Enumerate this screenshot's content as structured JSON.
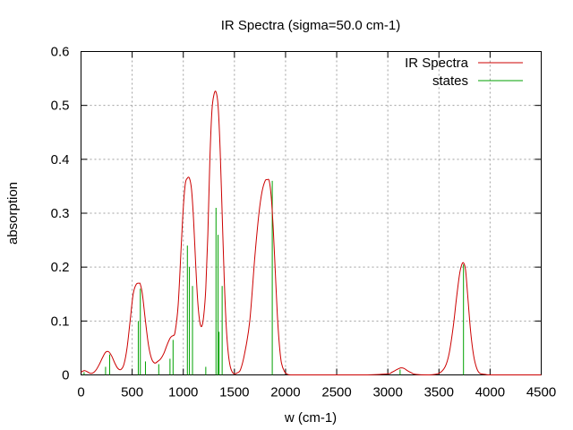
{
  "chart_data": {
    "type": "line",
    "title": "IR Spectra (sigma=50.0 cm-1)",
    "xlabel": "w (cm-1)",
    "ylabel": "absorption",
    "xlim": [
      0,
      4500
    ],
    "ylim": [
      0,
      0.6
    ],
    "xticks": [
      "0",
      "500",
      "1000",
      "1500",
      "2000",
      "2500",
      "3000",
      "3500",
      "4000",
      "4500"
    ],
    "yticks": [
      "0",
      "0.1",
      "0.2",
      "0.3",
      "0.4",
      "0.5",
      "0.6"
    ],
    "grid": true,
    "legend_position": "top-right",
    "series": [
      {
        "name": "IR Spectra",
        "color": "#cc0000",
        "style": "line",
        "x": [
          0,
          30,
          60,
          90,
          120,
          150,
          180,
          210,
          240,
          270,
          300,
          330,
          360,
          390,
          420,
          450,
          480,
          510,
          540,
          570,
          580,
          600,
          630,
          660,
          690,
          720,
          750,
          780,
          810,
          840,
          870,
          890,
          900,
          920,
          950,
          980,
          1000,
          1020,
          1040,
          1060,
          1080,
          1100,
          1120,
          1140,
          1160,
          1180,
          1200,
          1220,
          1240,
          1260,
          1280,
          1300,
          1320,
          1340,
          1360,
          1380,
          1400,
          1420,
          1440,
          1460,
          1480,
          1500,
          1530,
          1560,
          1600,
          1650,
          1700,
          1740,
          1770,
          1800,
          1820,
          1840,
          1860,
          1880,
          1900,
          1920,
          1940,
          1960,
          1990,
          2020,
          2060,
          2100,
          2200,
          2400,
          2600,
          2800,
          3000,
          3040,
          3080,
          3110,
          3130,
          3160,
          3190,
          3230,
          3270,
          3400,
          3500,
          3560,
          3600,
          3640,
          3670,
          3700,
          3720,
          3740,
          3760,
          3780,
          3810,
          3840,
          3870,
          3900,
          3950,
          4000,
          4200,
          4500
        ],
        "y": [
          0.005,
          0.008,
          0.006,
          0.003,
          0.004,
          0.01,
          0.02,
          0.032,
          0.042,
          0.043,
          0.035,
          0.022,
          0.012,
          0.01,
          0.02,
          0.05,
          0.1,
          0.15,
          0.168,
          0.17,
          0.168,
          0.15,
          0.1,
          0.055,
          0.03,
          0.022,
          0.025,
          0.03,
          0.04,
          0.055,
          0.068,
          0.072,
          0.073,
          0.08,
          0.13,
          0.24,
          0.31,
          0.355,
          0.365,
          0.365,
          0.345,
          0.29,
          0.21,
          0.14,
          0.1,
          0.09,
          0.11,
          0.16,
          0.26,
          0.4,
          0.49,
          0.52,
          0.525,
          0.5,
          0.42,
          0.3,
          0.18,
          0.09,
          0.04,
          0.015,
          0.005,
          0.002,
          0.004,
          0.01,
          0.04,
          0.1,
          0.22,
          0.3,
          0.34,
          0.36,
          0.362,
          0.36,
          0.33,
          0.27,
          0.19,
          0.11,
          0.055,
          0.022,
          0.006,
          0.001,
          0.0,
          0.0,
          0.0,
          0.0,
          0.0,
          0.0,
          0.002,
          0.005,
          0.009,
          0.012,
          0.013,
          0.012,
          0.008,
          0.004,
          0.001,
          0.0,
          0.003,
          0.015,
          0.04,
          0.09,
          0.14,
          0.185,
          0.203,
          0.208,
          0.195,
          0.15,
          0.08,
          0.035,
          0.012,
          0.003,
          0.001,
          0.0,
          0.0,
          0.0
        ]
      },
      {
        "name": "states",
        "color": "#00a000",
        "style": "impulses",
        "x": [
          30,
          240,
          280,
          560,
          580,
          630,
          760,
          870,
          900,
          1040,
          1060,
          1090,
          1220,
          1320,
          1340,
          1350,
          1380,
          1870,
          3120,
          3740
        ],
        "y": [
          0.005,
          0.015,
          0.038,
          0.1,
          0.16,
          0.025,
          0.02,
          0.03,
          0.065,
          0.24,
          0.2,
          0.165,
          0.015,
          0.31,
          0.26,
          0.08,
          0.165,
          0.36,
          0.01,
          0.205
        ]
      }
    ]
  }
}
